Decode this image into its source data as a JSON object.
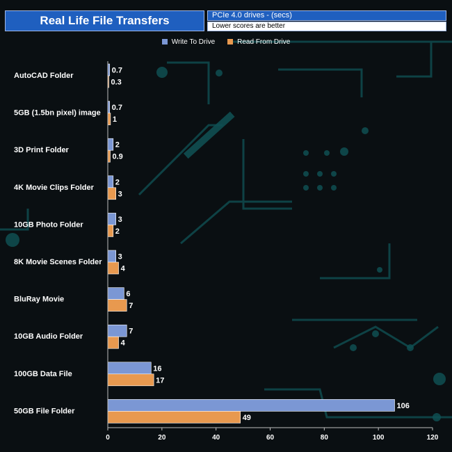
{
  "title": "Real Life File Transfers",
  "subtitle": "PCIe 4.0 drives - (secs)",
  "note": "Lower scores are better",
  "colors": {
    "write": "#7b97d4",
    "read": "#e8994f",
    "background": "#0a0f12",
    "accent": "#0f4f52"
  },
  "chart_data": {
    "type": "bar",
    "orientation": "horizontal",
    "categories": [
      "AutoCAD Folder",
      "5GB (1.5bn pixel) image",
      "3D Print Folder",
      "4K Movie Clips Folder",
      "10GB Photo Folder",
      "8K Movie Scenes Folder",
      "BluRay Movie",
      "10GB Audio Folder",
      "100GB Data File",
      "50GB File Folder"
    ],
    "series": [
      {
        "name": "Write To  Drive",
        "values": [
          0.7,
          0.7,
          2,
          2,
          3,
          3,
          6,
          7,
          16,
          106
        ],
        "labels": [
          "0.7",
          "0.7",
          "2",
          "2",
          "3",
          "3",
          "6",
          "7",
          "16",
          "106"
        ]
      },
      {
        "name": "Read From  Drive",
        "values": [
          0.3,
          1,
          0.9,
          3,
          2,
          4,
          7,
          4,
          17,
          49
        ],
        "labels": [
          "0.3",
          "1",
          "0.9",
          "3",
          "2",
          "4",
          "7",
          "4",
          "17",
          "49"
        ]
      }
    ],
    "xlim": [
      0,
      120
    ],
    "xticks": [
      "0",
      "20",
      "40",
      "60",
      "80",
      "100",
      "120"
    ],
    "grid": false,
    "legend_position": "top-center"
  }
}
